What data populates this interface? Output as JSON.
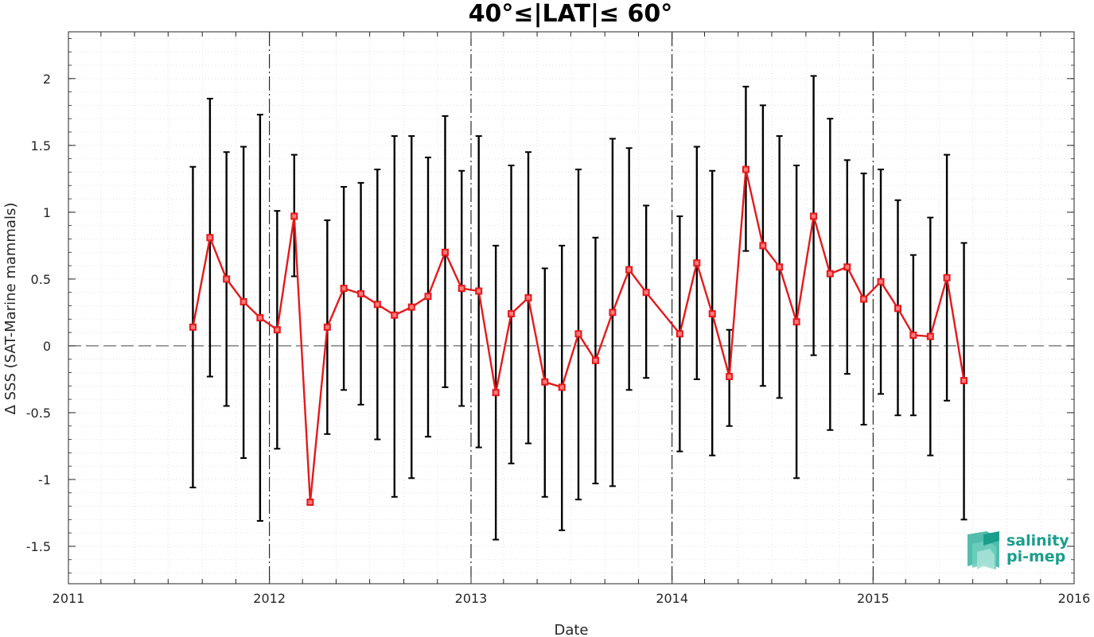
{
  "chart_data": {
    "type": "line",
    "title": "40°≤|LAT|≤ 60°",
    "xlabel": "Date",
    "ylabel": "Δ SSS (SAT-Marine mammals)",
    "xlim": [
      "2011-01-01",
      "2016-01-01"
    ],
    "ylim": [
      -1.78,
      2.35
    ],
    "xticks": [
      "2011",
      "2012",
      "2013",
      "2014",
      "2015",
      "2016"
    ],
    "yticks": [
      -1.5,
      -1,
      -0.5,
      0,
      0.5,
      1,
      1.5,
      2
    ],
    "ytick_labels": [
      "-1.5",
      "-1",
      "-0.5",
      "0",
      "0.5",
      "1",
      "1.5",
      "2"
    ],
    "year_separator_dates": [
      "2012-01-01",
      "2013-01-01",
      "2014-01-01",
      "2015-01-01"
    ],
    "reference_line": 0,
    "grid": "minor dotted",
    "series": [
      {
        "color": "#e31a1c",
        "marker": "square",
        "error_color": "#000000",
        "points": [
          {
            "x": "2011-08-15",
            "y": 0.14,
            "low": -1.06,
            "high": 1.34
          },
          {
            "x": "2011-09-15",
            "y": 0.81,
            "low": -0.23,
            "high": 1.85
          },
          {
            "x": "2011-10-15",
            "y": 0.5,
            "low": -0.45,
            "high": 1.45
          },
          {
            "x": "2011-11-15",
            "y": 0.33,
            "low": -0.84,
            "high": 1.49
          },
          {
            "x": "2011-12-15",
            "y": 0.21,
            "low": -1.31,
            "high": 1.73
          },
          {
            "x": "2012-01-15",
            "y": 0.12,
            "low": -0.77,
            "high": 1.01
          },
          {
            "x": "2012-02-15",
            "y": 0.97,
            "low": 0.52,
            "high": 1.43
          },
          {
            "x": "2012-03-15",
            "y": -1.17,
            "low": -1.18,
            "high": -1.16
          },
          {
            "x": "2012-04-15",
            "y": 0.14,
            "low": -0.66,
            "high": 0.94
          },
          {
            "x": "2012-05-15",
            "y": 0.43,
            "low": -0.33,
            "high": 1.19
          },
          {
            "x": "2012-06-15",
            "y": 0.39,
            "low": -0.44,
            "high": 1.22
          },
          {
            "x": "2012-07-15",
            "y": 0.31,
            "low": -0.7,
            "high": 1.32
          },
          {
            "x": "2012-08-15",
            "y": 0.23,
            "low": -1.13,
            "high": 1.57
          },
          {
            "x": "2012-09-15",
            "y": 0.29,
            "low": -0.99,
            "high": 1.57
          },
          {
            "x": "2012-10-15",
            "y": 0.37,
            "low": -0.68,
            "high": 1.41
          },
          {
            "x": "2012-11-15",
            "y": 0.7,
            "low": -0.31,
            "high": 1.72
          },
          {
            "x": "2012-12-15",
            "y": 0.43,
            "low": -0.45,
            "high": 1.31
          },
          {
            "x": "2013-01-15",
            "y": 0.41,
            "low": -0.76,
            "high": 1.57
          },
          {
            "x": "2013-02-15",
            "y": -0.35,
            "low": -1.45,
            "high": 0.75
          },
          {
            "x": "2013-03-15",
            "y": 0.24,
            "low": -0.88,
            "high": 1.35
          },
          {
            "x": "2013-04-15",
            "y": 0.36,
            "low": -0.73,
            "high": 1.45
          },
          {
            "x": "2013-05-15",
            "y": -0.27,
            "low": -1.13,
            "high": 0.58
          },
          {
            "x": "2013-06-15",
            "y": -0.31,
            "low": -1.38,
            "high": 0.75
          },
          {
            "x": "2013-07-15",
            "y": 0.09,
            "low": -1.15,
            "high": 1.32
          },
          {
            "x": "2013-08-15",
            "y": -0.11,
            "low": -1.03,
            "high": 0.81
          },
          {
            "x": "2013-09-15",
            "y": 0.25,
            "low": -1.05,
            "high": 1.55
          },
          {
            "x": "2013-10-15",
            "y": 0.57,
            "low": -0.33,
            "high": 1.48
          },
          {
            "x": "2013-11-15",
            "y": 0.4,
            "low": -0.24,
            "high": 1.05
          },
          {
            "x": "2014-01-15",
            "y": 0.09,
            "low": -0.79,
            "high": 0.97
          },
          {
            "x": "2014-02-15",
            "y": 0.62,
            "low": -0.25,
            "high": 1.49
          },
          {
            "x": "2014-03-15",
            "y": 0.24,
            "low": -0.82,
            "high": 1.31
          },
          {
            "x": "2014-04-15",
            "y": -0.23,
            "low": -0.6,
            "high": 0.12
          },
          {
            "x": "2014-05-15",
            "y": 1.32,
            "low": 0.71,
            "high": 1.94
          },
          {
            "x": "2014-06-15",
            "y": 0.75,
            "low": -0.3,
            "high": 1.8
          },
          {
            "x": "2014-07-15",
            "y": 0.59,
            "low": -0.39,
            "high": 1.57
          },
          {
            "x": "2014-08-15",
            "y": 0.18,
            "low": -0.99,
            "high": 1.35
          },
          {
            "x": "2014-09-15",
            "y": 0.97,
            "low": -0.07,
            "high": 2.02
          },
          {
            "x": "2014-10-15",
            "y": 0.54,
            "low": -0.63,
            "high": 1.7
          },
          {
            "x": "2014-11-15",
            "y": 0.59,
            "low": -0.21,
            "high": 1.39
          },
          {
            "x": "2014-12-15",
            "y": 0.35,
            "low": -0.59,
            "high": 1.29
          },
          {
            "x": "2015-01-15",
            "y": 0.48,
            "low": -0.36,
            "high": 1.32
          },
          {
            "x": "2015-02-15",
            "y": 0.28,
            "low": -0.52,
            "high": 1.09
          },
          {
            "x": "2015-03-15",
            "y": 0.08,
            "low": -0.52,
            "high": 0.68
          },
          {
            "x": "2015-04-15",
            "y": 0.07,
            "low": -0.82,
            "high": 0.96
          },
          {
            "x": "2015-05-15",
            "y": 0.51,
            "low": -0.41,
            "high": 1.43
          },
          {
            "x": "2015-06-15",
            "y": -0.26,
            "low": -1.3,
            "high": 0.77
          }
        ]
      }
    ]
  },
  "logo": {
    "line1": "salinity",
    "line2": "pi-mep"
  }
}
